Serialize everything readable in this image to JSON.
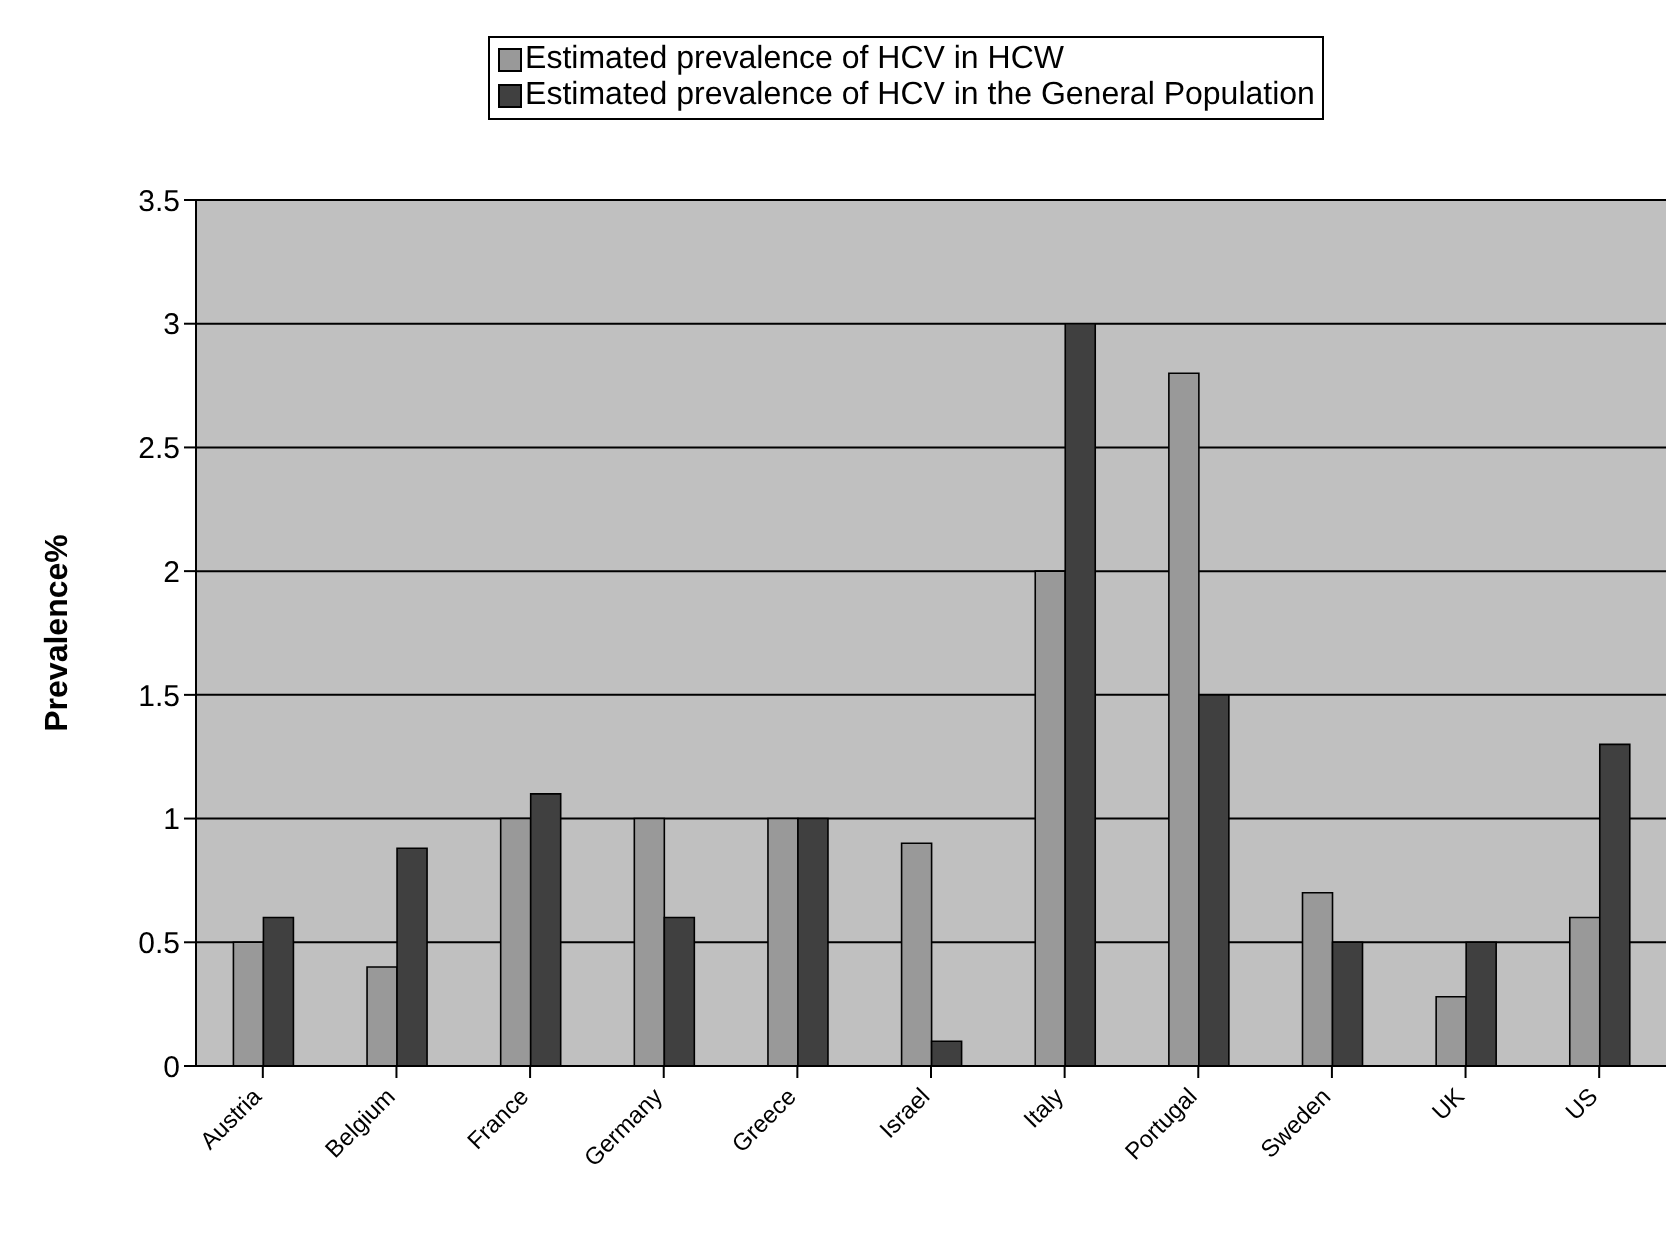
{
  "chart_data": {
    "type": "bar",
    "ylabel": "Prevalence%",
    "categories": [
      "Austria",
      "Belgium",
      "France",
      "Germany",
      "Greece",
      "Israel",
      "Italy",
      "Portugal",
      "Sweden",
      "UK",
      "US"
    ],
    "series": [
      {
        "name": "Estimated prevalence of HCV in HCW",
        "color": "#999999",
        "values": [
          0.5,
          0.4,
          1.0,
          1.0,
          1.0,
          0.9,
          2.0,
          2.8,
          0.7,
          0.28,
          0.6
        ]
      },
      {
        "name": "Estimated prevalence of HCV in the General Population",
        "color": "#404040",
        "values": [
          0.6,
          0.88,
          1.1,
          0.6,
          1.0,
          0.1,
          3.0,
          1.5,
          0.5,
          0.5,
          1.3
        ]
      }
    ],
    "ylim": [
      0,
      3.5
    ],
    "yticks": [
      0,
      0.5,
      1,
      1.5,
      2,
      2.5,
      3,
      3.5
    ],
    "grid": "y",
    "legend": "top"
  }
}
